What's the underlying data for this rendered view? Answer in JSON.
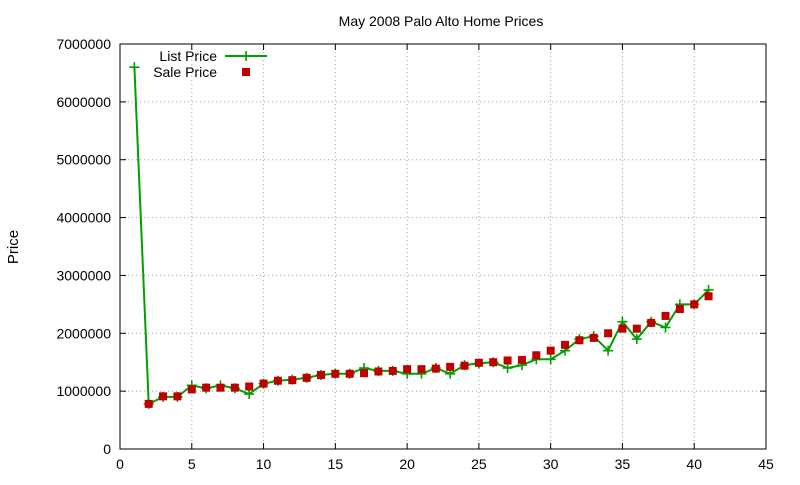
{
  "chart_data": {
    "type": "line",
    "title": "May 2008 Palo Alto Home Prices",
    "xlabel": "",
    "ylabel": "Price",
    "xlim": [
      0,
      45
    ],
    "ylim": [
      0,
      7000000
    ],
    "xticks": [
      0,
      5,
      10,
      15,
      20,
      25,
      30,
      35,
      40,
      45
    ],
    "yticks": [
      0,
      1000000,
      2000000,
      3000000,
      4000000,
      5000000,
      6000000,
      7000000
    ],
    "grid": true,
    "legend_position": "top-left",
    "series": [
      {
        "name": "List Price",
        "style": "lines+points",
        "marker": "plus",
        "color": "#00a000",
        "x": [
          1,
          2,
          3,
          4,
          5,
          6,
          7,
          8,
          9,
          10,
          11,
          12,
          13,
          14,
          15,
          16,
          17,
          18,
          19,
          20,
          21,
          22,
          23,
          24,
          25,
          26,
          27,
          28,
          29,
          30,
          31,
          32,
          33,
          34,
          35,
          36,
          37,
          38,
          39,
          40,
          41
        ],
        "y": [
          6600000,
          780000,
          900000,
          900000,
          1100000,
          1050000,
          1100000,
          1050000,
          950000,
          1130000,
          1180000,
          1200000,
          1230000,
          1280000,
          1300000,
          1300000,
          1400000,
          1350000,
          1350000,
          1300000,
          1300000,
          1400000,
          1300000,
          1450000,
          1480000,
          1500000,
          1400000,
          1450000,
          1550000,
          1550000,
          1700000,
          1900000,
          1950000,
          1700000,
          2200000,
          1900000,
          2200000,
          2100000,
          2500000,
          2500000,
          2750000
        ]
      },
      {
        "name": "Sale Price",
        "style": "points",
        "marker": "square",
        "color": "#c00000",
        "x": [
          2,
          3,
          4,
          5,
          6,
          7,
          8,
          9,
          10,
          11,
          12,
          13,
          14,
          15,
          16,
          17,
          18,
          19,
          20,
          21,
          22,
          23,
          24,
          25,
          26,
          27,
          28,
          29,
          30,
          31,
          32,
          33,
          34,
          35,
          36,
          37,
          38,
          39,
          40,
          41
        ],
        "y": [
          780000,
          910000,
          910000,
          1030000,
          1060000,
          1060000,
          1060000,
          1080000,
          1130000,
          1180000,
          1190000,
          1230000,
          1280000,
          1300000,
          1300000,
          1310000,
          1340000,
          1350000,
          1380000,
          1380000,
          1390000,
          1420000,
          1440000,
          1490000,
          1500000,
          1530000,
          1540000,
          1620000,
          1700000,
          1800000,
          1880000,
          1920000,
          2000000,
          2080000,
          2080000,
          2180000,
          2300000,
          2420000,
          2500000,
          2640000
        ]
      }
    ]
  }
}
